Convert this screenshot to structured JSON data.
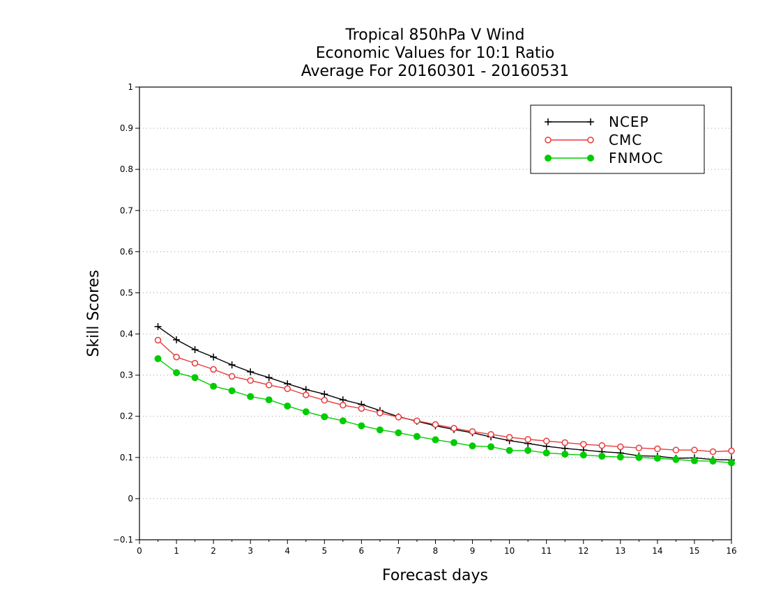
{
  "chart_data": {
    "type": "line",
    "title": [
      "Tropical 850hPa V Wind",
      "Economic Values for 10:1 Ratio",
      "Average For 20160301 - 20160531"
    ],
    "xlabel": "Forecast days",
    "ylabel": "Skill Scores",
    "xlim": [
      0,
      16
    ],
    "ylim": [
      -0.1,
      1
    ],
    "xticks": [
      0,
      1,
      2,
      3,
      4,
      5,
      6,
      7,
      8,
      9,
      10,
      11,
      12,
      13,
      14,
      15,
      16
    ],
    "yticks": [
      -0.1,
      0,
      0.1,
      0.2,
      0.3,
      0.4,
      0.5,
      0.6,
      0.7,
      0.8,
      0.9,
      1
    ],
    "ytick_labels": [
      "−0.1",
      "0",
      "0.1",
      "0.2",
      "0.3",
      "0.4",
      "0.5",
      "0.6",
      "0.7",
      "0.8",
      "0.9",
      "1"
    ],
    "grid": "horizontal dotted",
    "legend_position": "top-right",
    "x": [
      0.5,
      1,
      1.5,
      2,
      2.5,
      3,
      3.5,
      4,
      4.5,
      5,
      5.5,
      6,
      6.5,
      7,
      7.5,
      8,
      8.5,
      9,
      9.5,
      10,
      10.5,
      11,
      11.5,
      12,
      12.5,
      13,
      13.5,
      14,
      14.5,
      15,
      15.5,
      16
    ],
    "series": [
      {
        "name": "NCEP",
        "color": "#000000",
        "marker": "plus",
        "values": [
          0.418,
          0.386,
          0.362,
          0.344,
          0.325,
          0.308,
          0.294,
          0.279,
          0.265,
          0.254,
          0.24,
          0.229,
          0.214,
          0.199,
          0.188,
          0.177,
          0.168,
          0.16,
          0.15,
          0.141,
          0.134,
          0.127,
          0.122,
          0.118,
          0.114,
          0.111,
          0.104,
          0.103,
          0.098,
          0.099,
          0.095,
          0.094
        ]
      },
      {
        "name": "CMC",
        "color": "#e8393a",
        "marker": "open-circle",
        "values": [
          0.385,
          0.344,
          0.329,
          0.314,
          0.297,
          0.287,
          0.276,
          0.267,
          0.252,
          0.239,
          0.227,
          0.219,
          0.208,
          0.198,
          0.189,
          0.18,
          0.171,
          0.163,
          0.156,
          0.149,
          0.144,
          0.14,
          0.136,
          0.132,
          0.129,
          0.126,
          0.123,
          0.121,
          0.118,
          0.118,
          0.114,
          0.116
        ]
      },
      {
        "name": "FNMOC",
        "color": "#00cc00",
        "marker": "filled-circle",
        "values": [
          0.34,
          0.306,
          0.294,
          0.273,
          0.262,
          0.248,
          0.24,
          0.225,
          0.211,
          0.199,
          0.189,
          0.177,
          0.167,
          0.16,
          0.151,
          0.143,
          0.136,
          0.128,
          0.126,
          0.117,
          0.117,
          0.111,
          0.108,
          0.106,
          0.103,
          0.101,
          0.1,
          0.098,
          0.095,
          0.092,
          0.091,
          0.087
        ]
      }
    ]
  }
}
